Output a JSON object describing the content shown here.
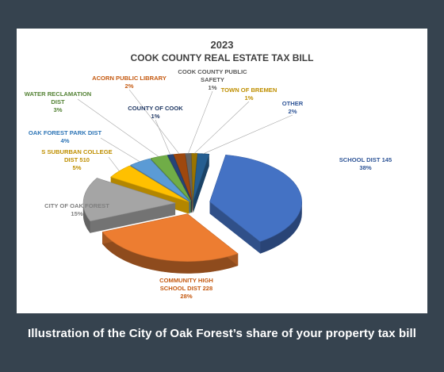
{
  "caption": "Illustration of the City of Oak Forest’s share of your property tax bill",
  "chart_data": {
    "type": "pie",
    "title_year": "2023",
    "title": "COOK COUNTY REAL ESTATE TAX BILL",
    "unit": "%",
    "slices": [
      {
        "label": "SCHOOL DIST 145",
        "value": 38,
        "value_text": "38%",
        "color": "#4472c4"
      },
      {
        "label": "COMMUNITY HIGH SCHOOL DIST 228",
        "value": 28,
        "value_text": "28%",
        "color": "#ed7d31"
      },
      {
        "label": "CITY OF OAK FOREST",
        "value": 15,
        "value_text": "15%",
        "color": "#a5a5a5"
      },
      {
        "label": "S SUBURBAN COLLEGE DIST 510",
        "value": 5,
        "value_text": "5%",
        "color": "#ffc000"
      },
      {
        "label": "OAK FOREST PARK DIST",
        "value": 4,
        "value_text": "4%",
        "color": "#5b9bd5"
      },
      {
        "label": "WATER RECLAMATION DIST",
        "value": 3,
        "value_text": "3%",
        "color": "#70ad47"
      },
      {
        "label": "COUNTY OF COOK",
        "value": 1,
        "value_text": "1%",
        "color": "#264478"
      },
      {
        "label": "ACORN PUBLIC LIBRARY",
        "value": 2,
        "value_text": "2%",
        "color": "#9e480e"
      },
      {
        "label": "COOK COUNTY PUBLIC SAFETY",
        "value": 1,
        "value_text": "1%",
        "color": "#636363"
      },
      {
        "label": "TOWN OF BREMEN",
        "value": 1,
        "value_text": "1%",
        "color": "#997300"
      },
      {
        "label": "OTHER",
        "value": 2,
        "value_text": "2%",
        "color": "#255e91"
      }
    ]
  }
}
